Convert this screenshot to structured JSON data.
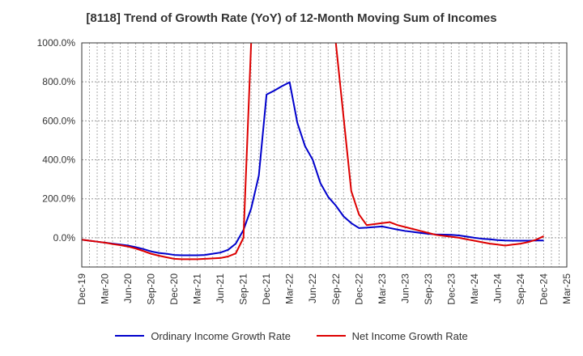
{
  "chart_data": {
    "type": "line",
    "title": "[8118]  Trend of Growth Rate (YoY) of 12-Month Moving Sum of Incomes",
    "xlabel": "",
    "ylabel": "",
    "ylim": [
      -150,
      1000
    ],
    "y_ticks": [
      0,
      200,
      400,
      600,
      800,
      1000
    ],
    "y_tick_labels": [
      "0.0%",
      "200.0%",
      "400.0%",
      "600.0%",
      "800.0%",
      "1000.0%"
    ],
    "x_tick_labels": [
      "Dec-19",
      "Mar-20",
      "Jun-20",
      "Sep-20",
      "Dec-20",
      "Mar-21",
      "Jun-21",
      "Sep-21",
      "Dec-21",
      "Mar-22",
      "Jun-22",
      "Sep-22",
      "Dec-22",
      "Mar-23",
      "Jun-23",
      "Sep-23",
      "Dec-23",
      "Mar-24",
      "Jun-24",
      "Sep-24",
      "Dec-24",
      "Mar-25"
    ],
    "x": [
      "Dec-19",
      "Jan-20",
      "Feb-20",
      "Mar-20",
      "Apr-20",
      "May-20",
      "Jun-20",
      "Jul-20",
      "Aug-20",
      "Sep-20",
      "Oct-20",
      "Nov-20",
      "Dec-20",
      "Jan-21",
      "Feb-21",
      "Mar-21",
      "Apr-21",
      "May-21",
      "Jun-21",
      "Jul-21",
      "Aug-21",
      "Sep-21",
      "Oct-21",
      "Nov-21",
      "Dec-21",
      "Jan-22",
      "Feb-22",
      "Mar-22",
      "Apr-22",
      "May-22",
      "Jun-22",
      "Jul-22",
      "Aug-22",
      "Sep-22",
      "Oct-22",
      "Nov-22",
      "Dec-22",
      "Jan-23",
      "Feb-23",
      "Mar-23",
      "Apr-23",
      "May-23",
      "Jun-23",
      "Jul-23",
      "Aug-23",
      "Sep-23",
      "Oct-23",
      "Nov-23",
      "Dec-23",
      "Jan-24",
      "Feb-24",
      "Mar-24",
      "Apr-24",
      "May-24",
      "Jun-24",
      "Jul-24",
      "Aug-24",
      "Sep-24",
      "Oct-24",
      "Nov-24",
      "Dec-24"
    ],
    "grid": true,
    "legend_position": "bottom",
    "series": [
      {
        "name": "Ordinary Income Growth Rate",
        "color": "#0000cc",
        "values": [
          -10,
          -15,
          -20,
          -25,
          -30,
          -35,
          -40,
          -48,
          -58,
          -70,
          -78,
          -82,
          -88,
          -90,
          -90,
          -90,
          -88,
          -82,
          -76,
          -62,
          -30,
          40,
          150,
          320,
          735,
          755,
          778,
          798,
          590,
          470,
          400,
          280,
          210,
          165,
          110,
          75,
          50,
          52,
          55,
          58,
          50,
          42,
          35,
          30,
          25,
          20,
          17,
          16,
          15,
          12,
          6,
          0,
          -5,
          -8,
          -12,
          -14,
          -15,
          -15,
          -15,
          -14,
          -14
        ]
      },
      {
        "name": "Net Income Growth Rate",
        "color": "#dd0000",
        "values": [
          -10,
          -15,
          -20,
          -25,
          -32,
          -38,
          -45,
          -55,
          -68,
          -82,
          -92,
          -100,
          -108,
          -110,
          -110,
          -110,
          -108,
          -106,
          -104,
          -96,
          -80,
          0,
          1000,
          null,
          null,
          null,
          null,
          null,
          null,
          null,
          null,
          null,
          null,
          1000,
          620,
          240,
          120,
          65,
          70,
          75,
          80,
          65,
          55,
          45,
          35,
          25,
          15,
          10,
          5,
          0,
          -8,
          -15,
          -23,
          -30,
          -35,
          -40,
          -35,
          -30,
          -22,
          -10,
          8
        ]
      }
    ]
  }
}
